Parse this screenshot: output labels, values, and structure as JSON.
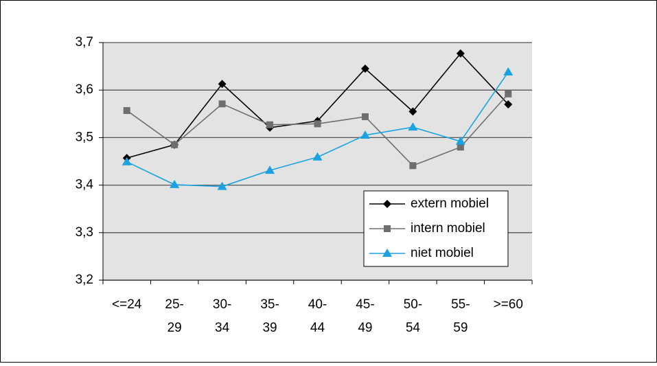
{
  "chart_data": {
    "type": "line",
    "categories": [
      "<=24",
      "25-29",
      "30-34",
      "35-39",
      "40-44",
      "45-49",
      "50-54",
      "55-59",
      ">=60"
    ],
    "series": [
      {
        "name": "extern mobiel",
        "color": "#000000",
        "marker": "diamond",
        "values": [
          3.457,
          3.485,
          3.613,
          3.521,
          3.535,
          3.645,
          3.555,
          3.677,
          3.57
        ]
      },
      {
        "name": "intern mobiel",
        "color": "#6e6e6e",
        "marker": "square",
        "values": [
          3.557,
          3.485,
          3.571,
          3.527,
          3.529,
          3.544,
          3.441,
          3.48,
          3.592
        ]
      },
      {
        "name": "niet mobiel",
        "color": "#1aa3e0",
        "marker": "triangle",
        "values": [
          3.449,
          3.401,
          3.397,
          3.431,
          3.459,
          3.505,
          3.522,
          3.492,
          3.638
        ]
      }
    ],
    "ylim": [
      3.2,
      3.7
    ],
    "yticks": [
      {
        "value": 3.2,
        "label": "3,2"
      },
      {
        "value": 3.3,
        "label": "3,3"
      },
      {
        "value": 3.4,
        "label": "3,4"
      },
      {
        "value": 3.5,
        "label": "3,5"
      },
      {
        "value": 3.6,
        "label": "3,6"
      },
      {
        "value": 3.7,
        "label": "3,7"
      }
    ],
    "grid": true
  }
}
